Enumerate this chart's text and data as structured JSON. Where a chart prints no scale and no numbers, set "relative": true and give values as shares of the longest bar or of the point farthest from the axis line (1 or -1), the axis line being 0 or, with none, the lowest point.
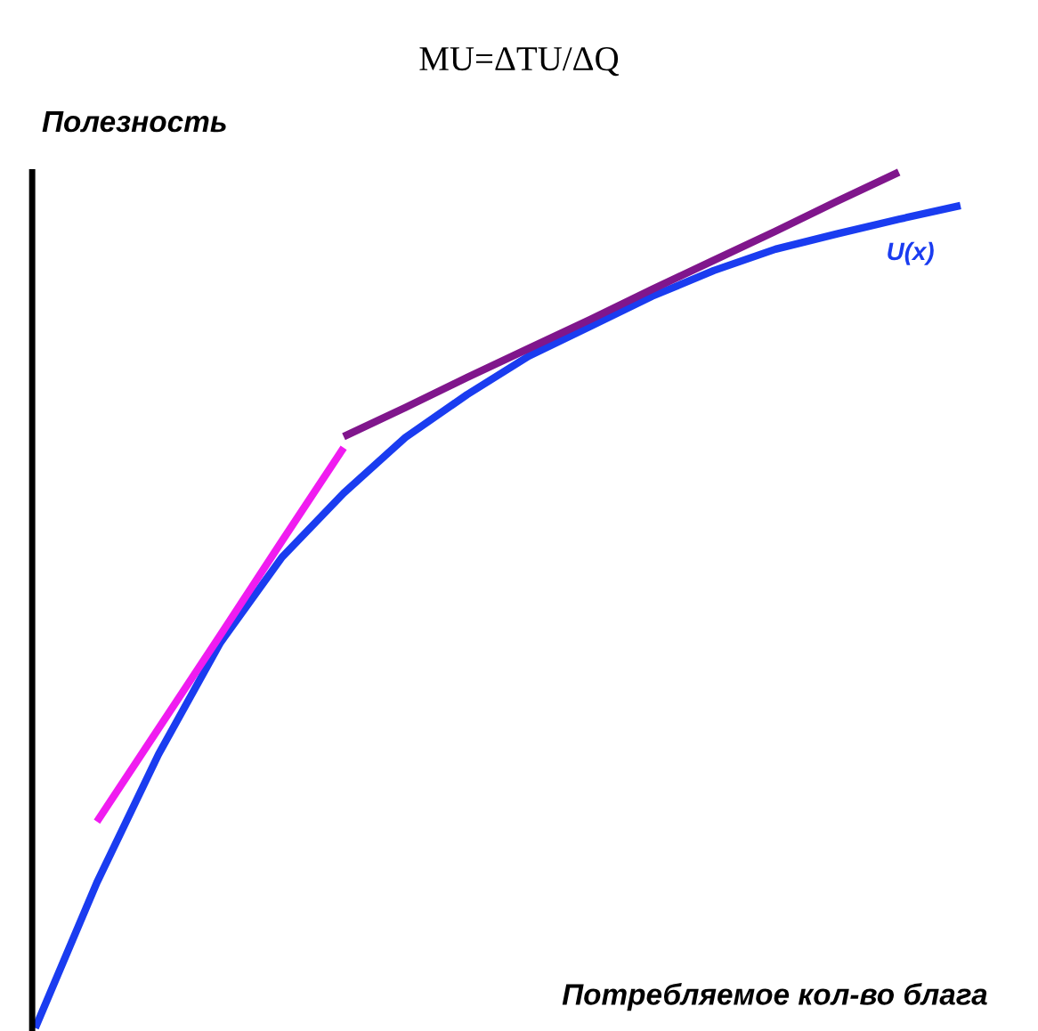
{
  "chart_data": {
    "type": "line",
    "relative": true,
    "title": "MU=ΔTU/ΔQ",
    "xlabel": "Потребляемое кол-во блага",
    "ylabel": "Полезность",
    "legend": false,
    "marker": "none",
    "line_style": "solid",
    "categories": [
      null,
      null,
      null,
      null,
      null,
      null,
      null,
      null,
      null,
      null,
      null,
      null,
      null,
      null,
      null,
      null
    ],
    "series": [
      {
        "name": "U(x)",
        "color": "#1a3cf0",
        "values": [
          0,
          0.17,
          0.32,
          0.45,
          0.55,
          0.625,
          0.69,
          0.74,
          0.785,
          0.82,
          0.855,
          0.885,
          0.91,
          0.928,
          0.945,
          0.961
        ]
      },
      {
        "color": "#f01cf0",
        "values": [
          null,
          0.241,
          0.35,
          0.459,
          0.569,
          0.678,
          null,
          null,
          null,
          null,
          null,
          null,
          null,
          null,
          null,
          null
        ]
      },
      {
        "color": "#80168c",
        "values": [
          null,
          null,
          null,
          null,
          null,
          0.691,
          0.725,
          0.76,
          0.794,
          0.828,
          0.863,
          0.897,
          0.931,
          0.966,
          1.0,
          null
        ]
      }
    ]
  }
}
